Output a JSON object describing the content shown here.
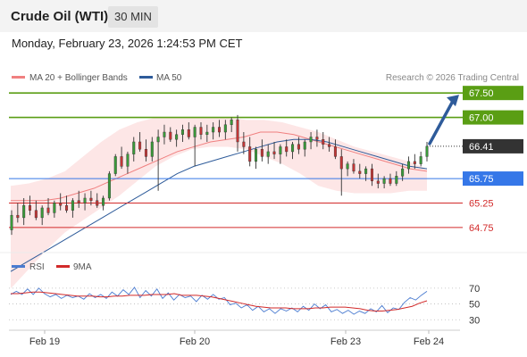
{
  "header": {
    "title": "Crude Oil (WTI)",
    "timeframe": "30 MIN"
  },
  "timestamp": "Monday, February 23, 2026 1:24:53 PM CET",
  "chart_data": {
    "type": "candlestick",
    "legend": [
      {
        "label": "MA 20 + Bollinger Bands",
        "color": "#f08080"
      },
      {
        "label": "MA 50",
        "color": "#2e5b9a"
      }
    ],
    "credit": "Research © 2026 Trading Central",
    "y_axis": {
      "min": 64.2,
      "max": 67.85
    },
    "x_ticks": [
      "Feb 19",
      "Feb 20",
      "Feb 23",
      "Feb 24"
    ],
    "levels": [
      {
        "label": "67.50",
        "value": 67.5,
        "kind": "resistance",
        "color": "#5a9e14"
      },
      {
        "label": "67.00",
        "value": 67.0,
        "kind": "resistance",
        "color": "#5a9e14"
      },
      {
        "label": "66.41",
        "value": 66.41,
        "kind": "last",
        "color": "#333333"
      },
      {
        "label": "65.75",
        "value": 65.75,
        "kind": "pivot",
        "color": "#3577e8"
      },
      {
        "label": "65.25",
        "value": 65.25,
        "kind": "support",
        "color": "#d22a2a"
      },
      {
        "label": "64.75",
        "value": 64.75,
        "kind": "support",
        "color": "#d22a2a"
      }
    ],
    "candles": [
      [
        64.7,
        65.1,
        64.6,
        65.0
      ],
      [
        65.0,
        65.25,
        64.85,
        64.95
      ],
      [
        64.95,
        65.35,
        64.8,
        65.2
      ],
      [
        65.2,
        65.4,
        65.0,
        65.1
      ],
      [
        65.1,
        65.3,
        64.9,
        64.95
      ],
      [
        64.95,
        65.2,
        64.8,
        65.15
      ],
      [
        65.15,
        65.35,
        65.0,
        65.05
      ],
      [
        65.05,
        65.3,
        64.95,
        65.25
      ],
      [
        65.25,
        65.45,
        65.1,
        65.2
      ],
      [
        65.2,
        65.4,
        65.05,
        65.1
      ],
      [
        65.1,
        65.35,
        64.95,
        65.3
      ],
      [
        65.3,
        65.5,
        65.15,
        65.25
      ],
      [
        65.25,
        65.45,
        65.1,
        65.35
      ],
      [
        65.35,
        65.5,
        65.2,
        65.3
      ],
      [
        65.3,
        65.45,
        65.15,
        65.2
      ],
      [
        65.2,
        65.4,
        65.1,
        65.35
      ],
      [
        65.35,
        65.9,
        65.3,
        65.85
      ],
      [
        65.85,
        66.25,
        65.8,
        66.2
      ],
      [
        66.2,
        66.4,
        65.95,
        66.0
      ],
      [
        66.0,
        66.3,
        65.85,
        66.25
      ],
      [
        66.25,
        66.6,
        66.1,
        66.5
      ],
      [
        66.5,
        66.7,
        66.3,
        66.35
      ],
      [
        66.35,
        66.55,
        66.1,
        66.2
      ],
      [
        66.2,
        66.6,
        66.1,
        66.5
      ],
      [
        66.5,
        66.75,
        65.5,
        66.6
      ],
      [
        66.6,
        66.85,
        66.45,
        66.7
      ],
      [
        66.7,
        66.8,
        66.5,
        66.55
      ],
      [
        66.55,
        66.75,
        66.4,
        66.65
      ],
      [
        66.65,
        66.85,
        66.5,
        66.75
      ],
      [
        66.75,
        66.9,
        66.55,
        66.6
      ],
      [
        66.6,
        66.85,
        66.0,
        66.8
      ],
      [
        66.8,
        66.9,
        66.55,
        66.65
      ],
      [
        66.65,
        66.85,
        66.5,
        66.7
      ],
      [
        66.7,
        66.9,
        66.55,
        66.8
      ],
      [
        66.8,
        66.95,
        66.6,
        66.7
      ],
      [
        66.7,
        66.95,
        66.55,
        66.85
      ],
      [
        66.85,
        67.0,
        66.7,
        66.95
      ],
      [
        66.95,
        67.05,
        66.3,
        66.5
      ],
      [
        66.5,
        66.7,
        66.25,
        66.4
      ],
      [
        66.4,
        66.6,
        66.0,
        66.1
      ],
      [
        66.1,
        66.4,
        65.95,
        66.35
      ],
      [
        66.35,
        66.55,
        66.1,
        66.2
      ],
      [
        66.2,
        66.45,
        66.05,
        66.3
      ],
      [
        66.3,
        66.5,
        66.15,
        66.25
      ],
      [
        66.25,
        66.45,
        66.05,
        66.4
      ],
      [
        66.4,
        66.55,
        66.2,
        66.3
      ],
      [
        66.3,
        66.5,
        66.15,
        66.45
      ],
      [
        66.45,
        66.6,
        66.25,
        66.35
      ],
      [
        66.35,
        66.55,
        66.2,
        66.5
      ],
      [
        66.5,
        66.7,
        66.35,
        66.6
      ],
      [
        66.6,
        66.75,
        66.4,
        66.55
      ],
      [
        66.55,
        66.7,
        66.35,
        66.45
      ],
      [
        66.45,
        66.6,
        66.3,
        66.4
      ],
      [
        66.4,
        66.55,
        66.15,
        66.2
      ],
      [
        66.2,
        66.35,
        65.4,
        65.95
      ],
      [
        65.95,
        66.1,
        65.8,
        66.05
      ],
      [
        66.05,
        66.15,
        65.85,
        65.9
      ],
      [
        65.9,
        66.05,
        65.75,
        65.85
      ],
      [
        65.85,
        66.0,
        65.7,
        65.95
      ],
      [
        65.95,
        66.05,
        65.6,
        65.7
      ],
      [
        65.7,
        65.85,
        65.55,
        65.65
      ],
      [
        65.65,
        65.8,
        65.55,
        65.75
      ],
      [
        65.75,
        65.85,
        65.6,
        65.65
      ],
      [
        65.65,
        65.9,
        65.6,
        65.8
      ],
      [
        65.8,
        66.05,
        65.7,
        65.95
      ],
      [
        65.95,
        66.2,
        65.85,
        66.1
      ],
      [
        66.1,
        66.25,
        65.95,
        66.05
      ],
      [
        66.05,
        66.3,
        66.0,
        66.2
      ],
      [
        66.2,
        66.5,
        66.1,
        66.41
      ]
    ],
    "ma20": [
      65.3,
      65.3,
      65.3,
      65.35,
      65.45,
      65.55,
      65.7,
      65.85,
      66.0,
      66.15,
      66.3,
      66.4,
      66.5,
      66.55,
      66.6,
      66.7,
      66.7,
      66.65,
      66.55,
      66.45,
      66.35,
      66.25,
      66.15,
      66.05,
      65.95,
      65.9
    ],
    "ma50": [
      63.85,
      64.05,
      64.25,
      64.45,
      64.65,
      64.85,
      65.05,
      65.25,
      65.45,
      65.65,
      65.85,
      66.0,
      66.1,
      66.2,
      66.3,
      66.4,
      66.5,
      66.55,
      66.55,
      66.5,
      66.4,
      66.3,
      66.2,
      66.1,
      66.0,
      65.95
    ],
    "bb_upper": [
      65.6,
      65.65,
      65.75,
      65.9,
      66.2,
      66.5,
      66.75,
      66.9,
      67.0,
      67.0,
      67.0,
      67.0,
      67.0,
      66.95,
      66.95,
      66.9,
      66.8,
      66.7,
      66.55,
      66.4,
      66.3,
      66.2,
      66.1,
      65.95
    ],
    "bb_lower": [
      63.5,
      63.9,
      64.3,
      64.65,
      64.9,
      65.15,
      65.4,
      65.7,
      66.0,
      66.2,
      66.35,
      66.4,
      66.4,
      66.35,
      66.2,
      66.05,
      65.85,
      65.6,
      65.5,
      65.45,
      65.45,
      65.45,
      65.5,
      65.5
    ],
    "rsi_panel": {
      "legend": [
        {
          "label": "RSI",
          "color": "#4a7bd0"
        },
        {
          "label": "9MA",
          "color": "#d22a2a"
        }
      ],
      "y_ticks": [
        "70",
        "50",
        "30"
      ],
      "rsi": [
        62,
        66,
        62,
        69,
        62,
        70,
        63,
        59,
        62,
        57,
        61,
        58,
        60,
        56,
        63,
        58,
        62,
        57,
        65,
        60,
        68,
        62,
        71,
        58,
        67,
        60,
        69,
        57,
        64,
        55,
        62,
        58,
        60,
        53,
        61,
        56,
        62,
        56,
        58,
        49,
        51,
        45,
        49,
        42,
        47,
        40,
        44,
        38,
        44,
        41,
        45,
        40,
        47,
        42,
        50,
        44,
        49,
        40,
        43,
        38,
        42,
        37,
        41,
        38,
        44,
        40,
        48,
        39,
        45,
        43,
        52,
        58,
        55,
        61,
        66
      ],
      "ma9": [
        63,
        63,
        64,
        65,
        65,
        64,
        63,
        62,
        61,
        60,
        60,
        60,
        59,
        59,
        60,
        60,
        61,
        61,
        61,
        62,
        62,
        62,
        63,
        61,
        61,
        61,
        60,
        59,
        57,
        55,
        53,
        51,
        49,
        47,
        46,
        45,
        45,
        45,
        44,
        44,
        44,
        45,
        45,
        46,
        46,
        46,
        45,
        44,
        42,
        41,
        41,
        42,
        43,
        45,
        47,
        51,
        54
      ]
    }
  }
}
